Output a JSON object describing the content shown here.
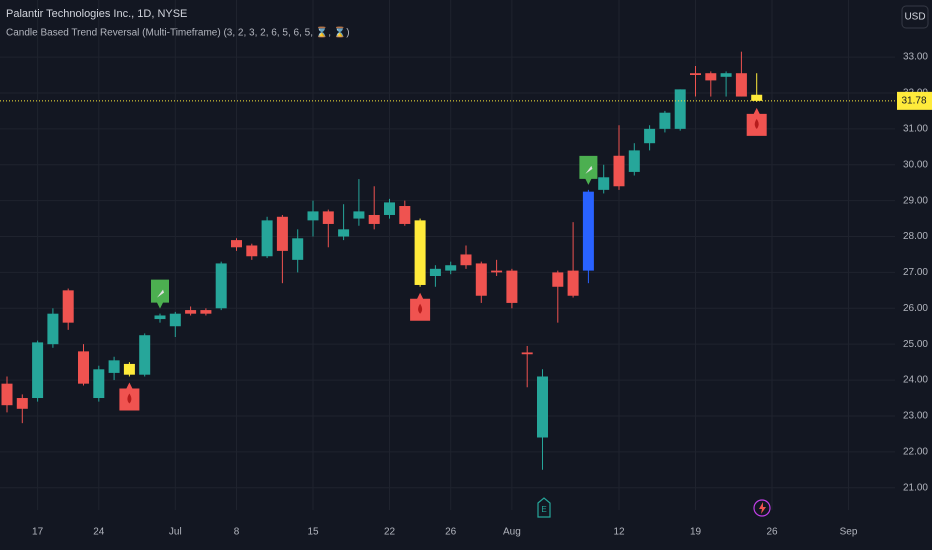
{
  "header": {
    "symbol": "Palantir Technologies Inc., 1D, NYSE",
    "indicator": "Candle Based Trend Reversal (Multi-Timeframe) (3, 2, 3, 2, 6, 5, 6, 5, ⌛, ⌛)",
    "currency": "USD"
  },
  "chart_data": {
    "type": "candlestick",
    "categories": [
      null,
      null,
      "17",
      null,
      null,
      null,
      "24",
      null,
      null,
      null,
      null,
      "Jul",
      null,
      null,
      null,
      "8",
      null,
      null,
      null,
      null,
      "15",
      null,
      null,
      null,
      null,
      "22",
      null,
      null,
      null,
      "26",
      null,
      null,
      null,
      "Aug",
      null,
      null,
      null,
      null,
      null,
      null,
      "12",
      null,
      null,
      null,
      null,
      "19",
      null,
      null,
      null,
      null,
      "26",
      null,
      null,
      null,
      null,
      "Sep"
    ],
    "open": [
      23.9,
      23.5,
      23.5,
      25.0,
      26.5,
      24.8,
      23.5,
      24.2,
      24.45,
      24.15,
      25.7,
      25.5,
      25.95,
      25.95,
      26.0,
      27.9,
      27.75,
      27.45,
      28.55,
      27.35,
      28.45,
      28.7,
      28.0,
      28.5,
      28.6,
      28.6,
      28.85,
      28.45,
      26.9,
      27.05,
      27.5,
      27.25,
      27.05,
      27.05,
      24.77,
      22.4,
      27.0,
      27.05,
      27.05,
      29.3,
      30.25,
      29.8,
      30.6,
      31.0,
      31.0,
      32.55,
      32.55,
      32.45,
      32.55,
      31.95,
      null,
      null,
      null,
      null,
      null,
      null
    ],
    "high": [
      24.1,
      23.6,
      25.1,
      26.0,
      26.55,
      25.0,
      24.4,
      24.65,
      24.5,
      25.3,
      25.85,
      25.9,
      26.05,
      26.0,
      27.3,
      27.95,
      27.8,
      28.55,
      28.6,
      28.2,
      29.0,
      28.75,
      28.9,
      29.6,
      29.4,
      29.05,
      29.0,
      28.5,
      27.2,
      27.3,
      27.75,
      27.3,
      27.35,
      27.1,
      24.95,
      24.3,
      27.05,
      28.4,
      29.3,
      30.0,
      31.1,
      30.6,
      31.1,
      31.5,
      32.1,
      32.75,
      32.6,
      32.6,
      33.15,
      32.55,
      null,
      null,
      null,
      null,
      null,
      null
    ],
    "low": [
      23.1,
      22.8,
      23.4,
      24.9,
      25.4,
      23.85,
      23.4,
      24.0,
      24.1,
      24.1,
      25.6,
      25.2,
      25.8,
      25.8,
      25.95,
      27.6,
      27.35,
      27.4,
      26.7,
      27.0,
      28.0,
      27.7,
      27.9,
      28.3,
      28.2,
      28.5,
      28.3,
      26.6,
      26.6,
      26.95,
      27.1,
      26.15,
      26.9,
      26.0,
      23.8,
      21.5,
      25.6,
      26.3,
      26.7,
      29.2,
      29.3,
      29.7,
      30.4,
      30.9,
      30.95,
      31.9,
      31.9,
      31.9,
      31.9,
      31.75,
      null,
      null,
      null,
      null,
      null,
      null
    ],
    "close": [
      23.3,
      23.2,
      25.05,
      25.85,
      25.6,
      23.9,
      24.3,
      24.55,
      24.15,
      25.25,
      25.8,
      25.85,
      25.85,
      25.85,
      27.25,
      27.7,
      27.45,
      28.45,
      27.6,
      27.95,
      28.7,
      28.35,
      28.2,
      28.7,
      28.35,
      28.95,
      28.35,
      26.65,
      27.1,
      27.2,
      27.2,
      26.35,
      27.0,
      26.15,
      24.72,
      24.1,
      26.6,
      26.35,
      29.25,
      29.65,
      29.4,
      30.4,
      31.0,
      31.45,
      32.1,
      32.5,
      32.35,
      32.55,
      31.9,
      31.78,
      null,
      null,
      null,
      null,
      null,
      null
    ],
    "bar_colors": [
      null,
      null,
      null,
      null,
      null,
      null,
      null,
      null,
      "#ffeb3b",
      null,
      null,
      null,
      null,
      null,
      null,
      null,
      null,
      null,
      null,
      null,
      null,
      null,
      null,
      null,
      null,
      null,
      null,
      "#ffeb3b",
      null,
      null,
      null,
      null,
      null,
      null,
      null,
      null,
      null,
      null,
      "#2962ff",
      null,
      null,
      null,
      null,
      null,
      null,
      null,
      null,
      null,
      null,
      "#ffeb3b",
      null,
      null,
      null,
      null,
      null,
      null
    ],
    "markers": [
      null,
      null,
      null,
      null,
      null,
      null,
      null,
      null,
      "down",
      null,
      "up",
      null,
      null,
      null,
      null,
      null,
      null,
      null,
      null,
      null,
      null,
      null,
      null,
      null,
      null,
      null,
      null,
      "down",
      null,
      null,
      null,
      null,
      null,
      null,
      null,
      null,
      null,
      null,
      "up",
      null,
      null,
      null,
      null,
      null,
      null,
      null,
      null,
      null,
      null,
      "down",
      null,
      null,
      null,
      null,
      null,
      null
    ],
    "up_color": "#26a69a",
    "down_color": "#ef5350",
    "last_price": 31.78,
    "ylim": [
      20.38,
      34.59
    ],
    "yticks": [
      {
        "value": 21,
        "label": "21.00"
      },
      {
        "value": 22,
        "label": "22.00"
      },
      {
        "value": 23,
        "label": "23.00"
      },
      {
        "value": 24,
        "label": "24.00"
      },
      {
        "value": 25,
        "label": "25.00"
      },
      {
        "value": 26,
        "label": "26.00"
      },
      {
        "value": 27,
        "label": "27.00"
      },
      {
        "value": 28,
        "label": "28.00"
      },
      {
        "value": 29,
        "label": "29.00"
      },
      {
        "value": 30,
        "label": "30.00"
      },
      {
        "value": 31,
        "label": "31.00"
      },
      {
        "value": 32,
        "label": "32.00"
      },
      {
        "value": 33,
        "label": "33.00"
      }
    ],
    "grid": true
  }
}
